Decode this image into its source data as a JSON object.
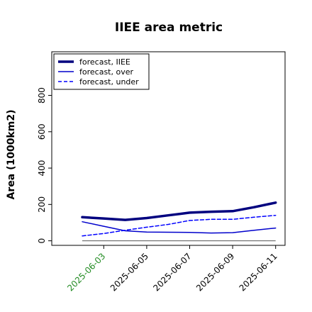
{
  "chart_data": {
    "type": "line",
    "title": "IIEE area metric",
    "xlabel": "",
    "ylabel": "Area (1000km2)",
    "x": [
      "2025-06-02",
      "2025-06-03",
      "2025-06-04",
      "2025-06-05",
      "2025-06-06",
      "2025-06-07",
      "2025-06-08",
      "2025-06-09",
      "2025-06-10",
      "2025-06-11"
    ],
    "xticks": [
      "2025-06-03",
      "2025-06-05",
      "2025-06-07",
      "2025-06-09",
      "2025-06-11"
    ],
    "highlighted_xtick": "2025-06-03",
    "yticks": [
      0,
      200,
      400,
      600,
      800
    ],
    "ylim": [
      -25,
      1040
    ],
    "grid": false,
    "legend_position": "top-left",
    "zero_line": true,
    "series": [
      {
        "name": "forecast, IIEE",
        "values": [
          130,
          123,
          115,
          125,
          140,
          155,
          160,
          163,
          185,
          210
        ],
        "color": "#00007f",
        "style": "solid-thick"
      },
      {
        "name": "forecast, over",
        "values": [
          105,
          80,
          55,
          48,
          47,
          46,
          43,
          45,
          58,
          70
        ],
        "color": "#0000cc",
        "style": "solid"
      },
      {
        "name": "forecast, under",
        "values": [
          27,
          40,
          58,
          75,
          90,
          112,
          118,
          118,
          130,
          140
        ],
        "color": "#0000ff",
        "style": "dashed"
      }
    ],
    "colors": {
      "highlight_tick": "#228b22",
      "text": "#000000",
      "zero_line": "#555555"
    }
  }
}
